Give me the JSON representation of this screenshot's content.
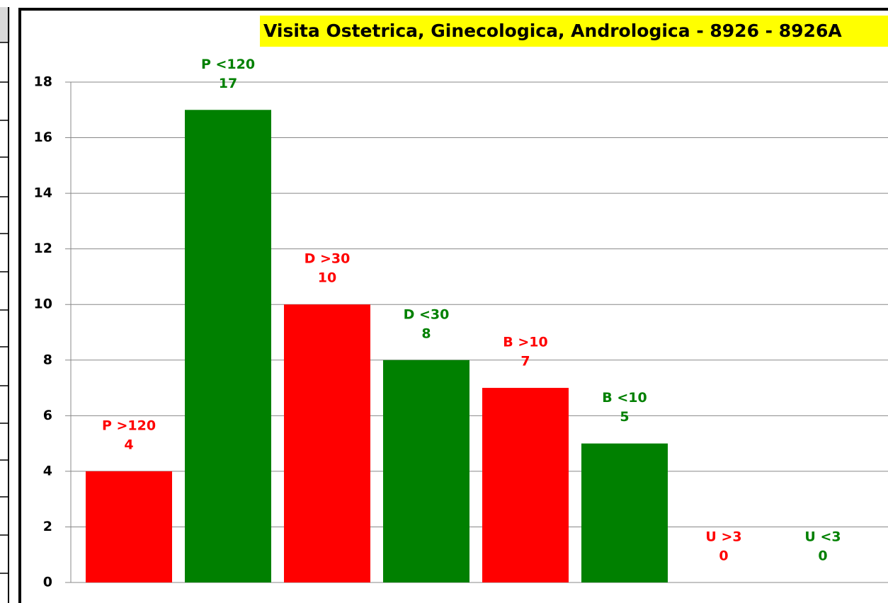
{
  "chart_data": {
    "type": "bar",
    "title": "Visita Ostetrica, Ginecologica, Andrologica - 8926  - 8926A",
    "categories": [
      "P >120",
      "P <120",
      "D >30",
      "D <30",
      "B >10",
      "B <10",
      "U >3",
      "U <3"
    ],
    "values": [
      4,
      17,
      10,
      8,
      7,
      5,
      0,
      0
    ],
    "colors": [
      "#ff0000",
      "#008000",
      "#ff0000",
      "#008000",
      "#ff0000",
      "#008000",
      "#ff0000",
      "#008000"
    ],
    "ylim": [
      0,
      18
    ],
    "yticks": [
      0,
      2,
      4,
      6,
      8,
      10,
      12,
      14,
      16,
      18
    ],
    "grid": true
  }
}
